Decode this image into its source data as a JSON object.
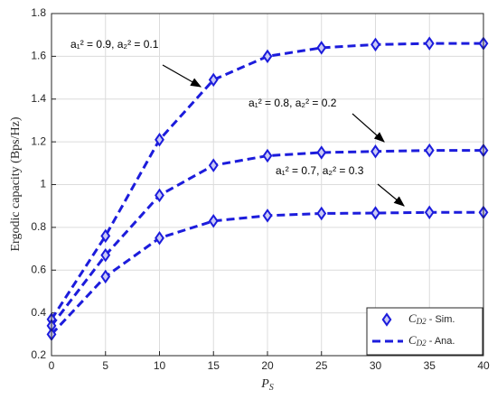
{
  "chart_data": {
    "type": "line",
    "ylabel": "Ergodic capacity (Bps/Hz)",
    "xlabel": {
      "base": "P",
      "sub": "S"
    },
    "x": [
      0,
      5,
      10,
      15,
      20,
      25,
      30,
      35,
      40
    ],
    "xlim": [
      0,
      40
    ],
    "xticks": [
      0,
      5,
      10,
      15,
      20,
      25,
      30,
      35,
      40
    ],
    "ylim": [
      0.2,
      1.8
    ],
    "yticks": [
      0.2,
      0.4,
      0.6,
      0.8,
      1,
      1.2,
      1.4,
      1.6,
      1.8
    ],
    "grid": true,
    "color": "#1c1cdc",
    "marker_fill": "#c9c9f5",
    "series": [
      {
        "values": [
          0.37,
          0.76,
          1.21,
          1.49,
          1.6,
          1.64,
          1.655,
          1.66,
          1.66
        ]
      },
      {
        "values": [
          0.34,
          0.67,
          0.95,
          1.09,
          1.135,
          1.15,
          1.155,
          1.16,
          1.16
        ]
      },
      {
        "values": [
          0.3,
          0.57,
          0.75,
          0.83,
          0.855,
          0.865,
          0.867,
          0.87,
          0.87
        ]
      }
    ],
    "annotations": [
      "a₁² = 0.9, a₂² = 0.1",
      "a₁² = 0.8, a₂² = 0.2",
      "a₁² = 0.7, a₂² = 0.3"
    ],
    "legend": {
      "position": "lower right",
      "entries": [
        {
          "style": "marker",
          "label": {
            "base": "C",
            "sub": "D2",
            "rest": " - Sim."
          }
        },
        {
          "style": "dashed",
          "label": {
            "base": "C",
            "sub": "D2",
            "rest": " - Ana."
          }
        }
      ]
    }
  }
}
